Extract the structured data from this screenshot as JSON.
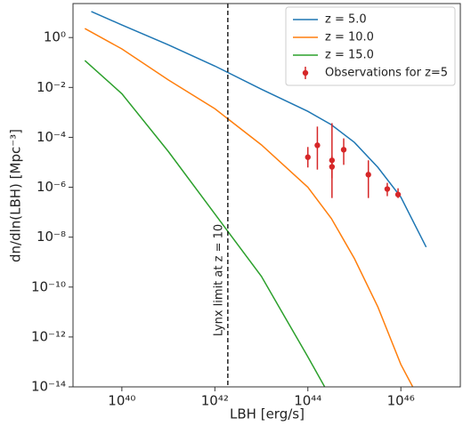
{
  "chart_data": {
    "type": "line",
    "log_x": true,
    "log_y": true,
    "xlabel": "LBH [erg/s]",
    "ylabel": "dn/dln(LBH) [Mpc⁻³]",
    "xlim": [
      8.9e+38,
      1.9e+47
    ],
    "ylim": [
      1e-14,
      23
    ],
    "xticks": [
      {
        "value": 1e+40,
        "label": "10⁴⁰"
      },
      {
        "value": 1e+42,
        "label": "10⁴²"
      },
      {
        "value": 1e+44,
        "label": "10⁴⁴"
      },
      {
        "value": 1e+46,
        "label": "10⁴⁶"
      }
    ],
    "yticks": [
      {
        "value": 1,
        "label": "10⁰"
      },
      {
        "value": 0.01,
        "label": "10⁻²"
      },
      {
        "value": 0.0001,
        "label": "10⁻⁴"
      },
      {
        "value": 1e-06,
        "label": "10⁻⁶"
      },
      {
        "value": 1e-08,
        "label": "10⁻⁸"
      },
      {
        "value": 1e-10,
        "label": "10⁻¹⁰"
      },
      {
        "value": 1e-12,
        "label": "10⁻¹²"
      },
      {
        "value": 1e-14,
        "label": "10⁻¹⁴"
      }
    ],
    "legend": "upper right",
    "vline": {
      "x": 1.9e+42,
      "label": "Lynx limit at z = 10"
    },
    "series": [
      {
        "name": "z = 5.0",
        "color": "#1f77b4",
        "x": [
          2.2e+39,
          1e+40,
          1e+41,
          1e+42,
          1e+43,
          1e+44,
          3.2e+44,
          1e+45,
          3.2e+45,
          1e+46,
          3.5e+46
        ],
        "values": [
          11,
          3.2,
          0.51,
          0.072,
          0.0085,
          0.0011,
          0.00032,
          6.3e-05,
          6.3e-06,
          4e-07,
          4e-09
        ]
      },
      {
        "name": "z = 10.0",
        "color": "#ff7f0e",
        "x": [
          1.6e+39,
          1e+40,
          1e+41,
          1e+42,
          1e+43,
          1e+44,
          3.2e+44,
          1e+45,
          3.2e+45,
          1e+46,
          1.8e+46
        ],
        "values": [
          2.3,
          0.35,
          0.02,
          0.0014,
          5e-05,
          1e-06,
          5.6e-08,
          1.4e-09,
          1.6e-11,
          7.9e-14,
          1e-14
        ]
      },
      {
        "name": "z = 15.0",
        "color": "#2ca02c",
        "x": [
          1.6e+39,
          1e+40,
          1e+41,
          1e+42,
          1e+43,
          3.2e+43,
          1e+44,
          2.3e+44
        ],
        "values": [
          0.12,
          0.0056,
          2.7e-05,
          8.5e-08,
          2.7e-10,
          6.3e-12,
          1.6e-13,
          1e-14
        ]
      },
      {
        "name": "Observations for z=5",
        "color": "#d62728",
        "type": "errorbar",
        "x": [
          1e+44,
          1.6e+44,
          3.3e+44,
          3.3e+44,
          5.9e+44,
          2e+45,
          5.1e+45,
          8.7e+45
        ],
        "values": [
          1.6e-05,
          4.8e-05,
          1.2e-05,
          6.6e-06,
          3.2e-05,
          3.2e-06,
          8.5e-07,
          5.1e-07
        ],
        "y_low": [
          6.2e-06,
          5.1e-06,
          3.7e-07,
          2.3e-06,
          7.9e-06,
          3.7e-07,
          4.4e-07,
          3.7e-07
        ],
        "y_high": [
          4.1e-05,
          0.00027,
          0.00037,
          1.8e-05,
          9.1e-05,
          1.2e-05,
          1.5e-06,
          9.1e-07
        ]
      }
    ]
  }
}
